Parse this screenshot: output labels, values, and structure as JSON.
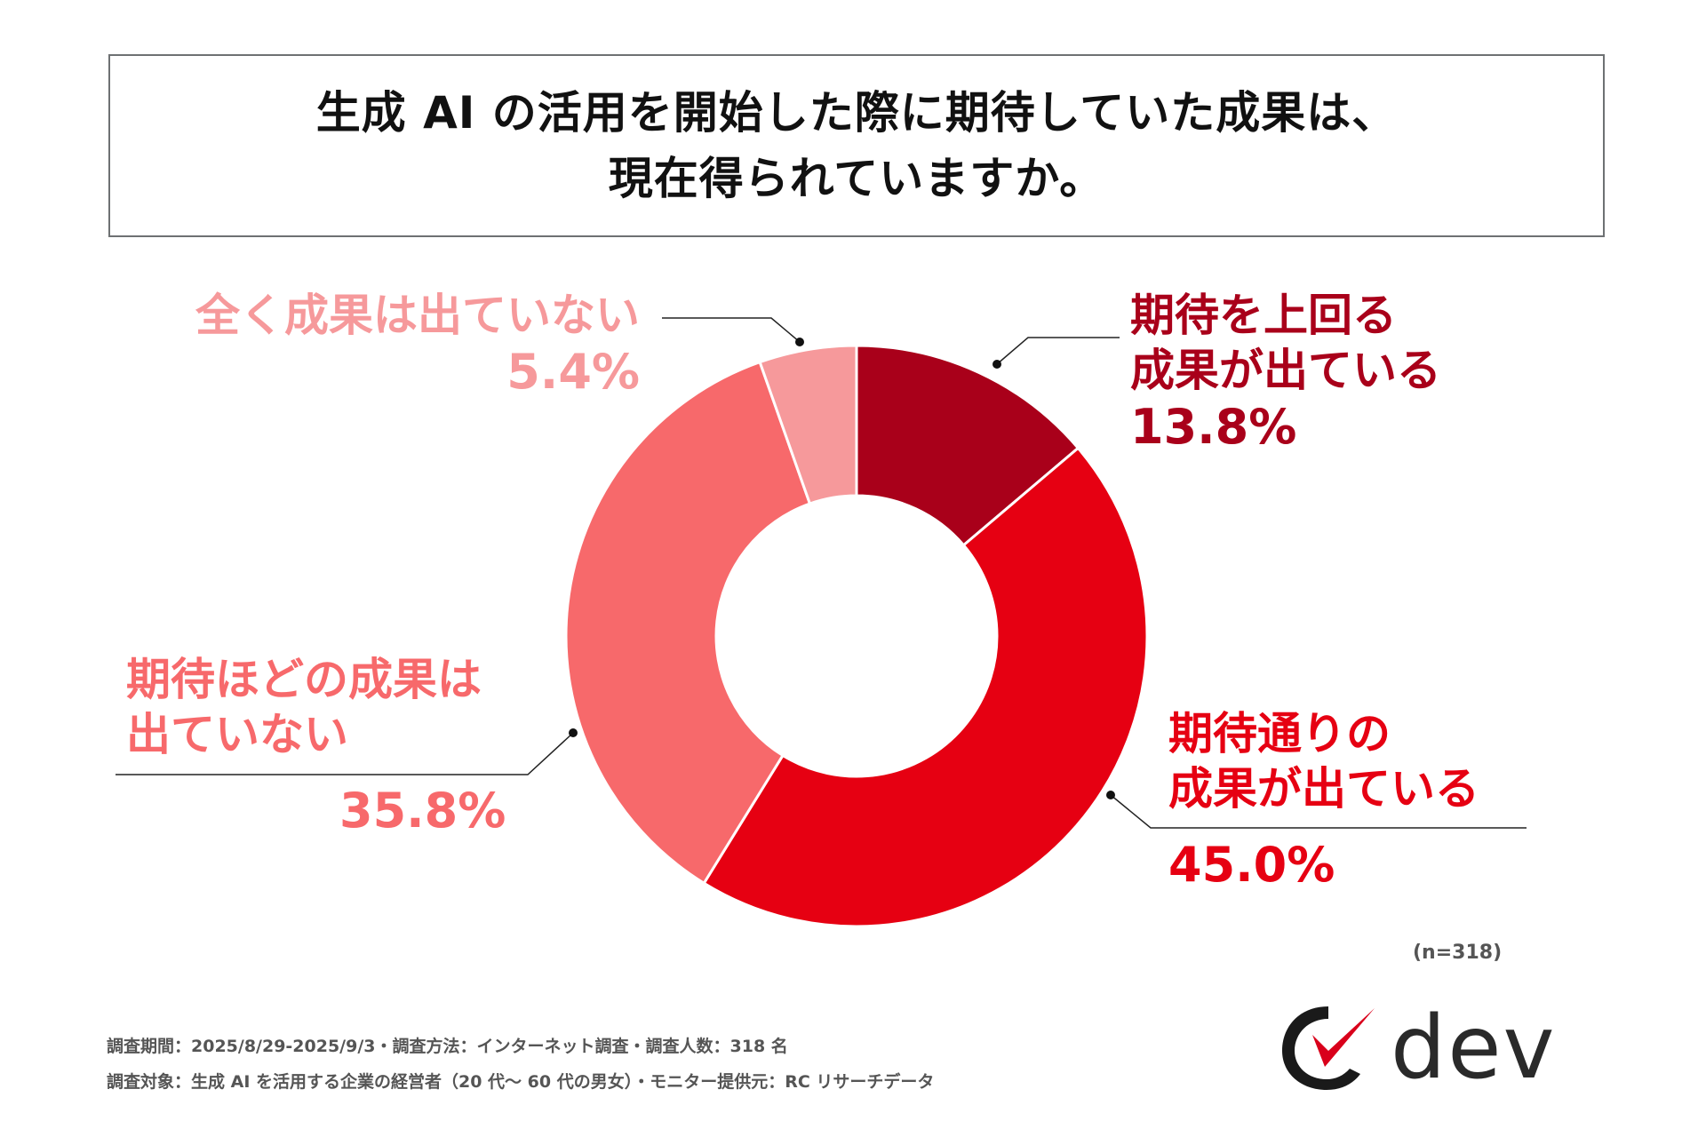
{
  "title": {
    "line1": "生成 AI の活用を開始した際に期待していた成果は、",
    "line2": "現在得られていますか。"
  },
  "chart_data": {
    "type": "pie",
    "donut": true,
    "slices": [
      {
        "label_line1": "期待を上回る",
        "label_line2": "成果が出ている",
        "value": 13.8,
        "display": "13.8%",
        "color": "#a9001a"
      },
      {
        "label_line1": "期待通りの",
        "label_line2": "成果が出ている",
        "value": 45.0,
        "display": "45.0%",
        "color": "#e60012"
      },
      {
        "label_line1": "期待ほどの成果は",
        "label_line2": "出ていない",
        "value": 35.8,
        "display": "35.8%",
        "color": "#f7696b"
      },
      {
        "label_line1": "全く成果は出ていない",
        "label_line2": "",
        "value": 5.4,
        "display": "5.4%",
        "color": "#f6999b"
      }
    ],
    "start": "top",
    "direction": "clockwise"
  },
  "sample_size": "(n=318)",
  "footer": {
    "line1": "調査期間：2025/8/29-2025/9/3・調査方法：インターネット調査・調査人数：318 名",
    "line2": "調査対象：生成 AI を活用する企業の経営者（20 代〜 60 代の男女）・モニター提供元：RC リサーチデータ"
  },
  "logo": {
    "text": "dev"
  }
}
